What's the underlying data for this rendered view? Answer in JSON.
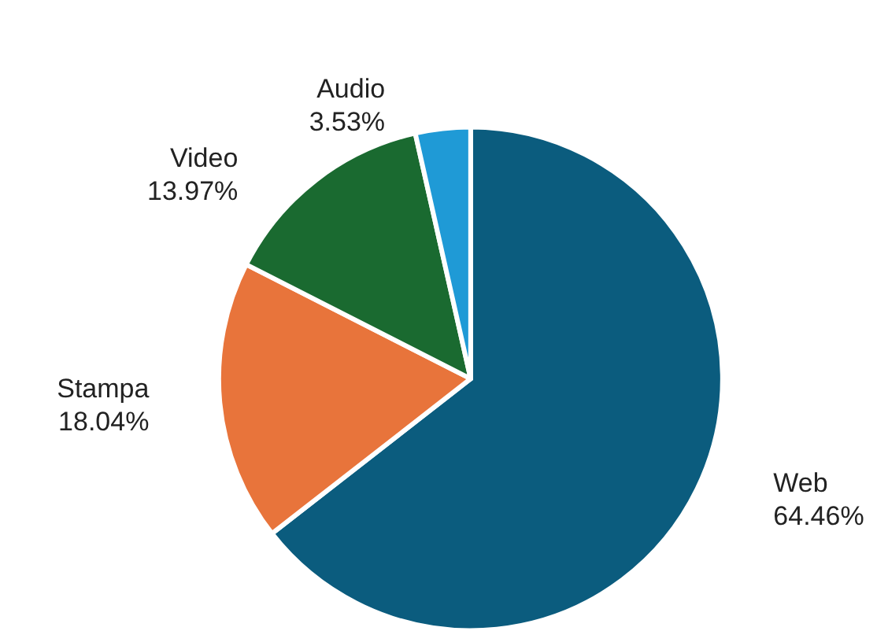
{
  "chart_data": {
    "type": "pie",
    "categories": [
      "Web",
      "Stampa",
      "Video",
      "Audio"
    ],
    "values": [
      64.46,
      18.04,
      13.97,
      3.53
    ],
    "colors": [
      "#0b5c7e",
      "#e8743b",
      "#1a6a30",
      "#1f9ad6"
    ],
    "value_labels": [
      "64.46%",
      "18.04%",
      "13.97%",
      "3.53%"
    ],
    "legend": false
  }
}
